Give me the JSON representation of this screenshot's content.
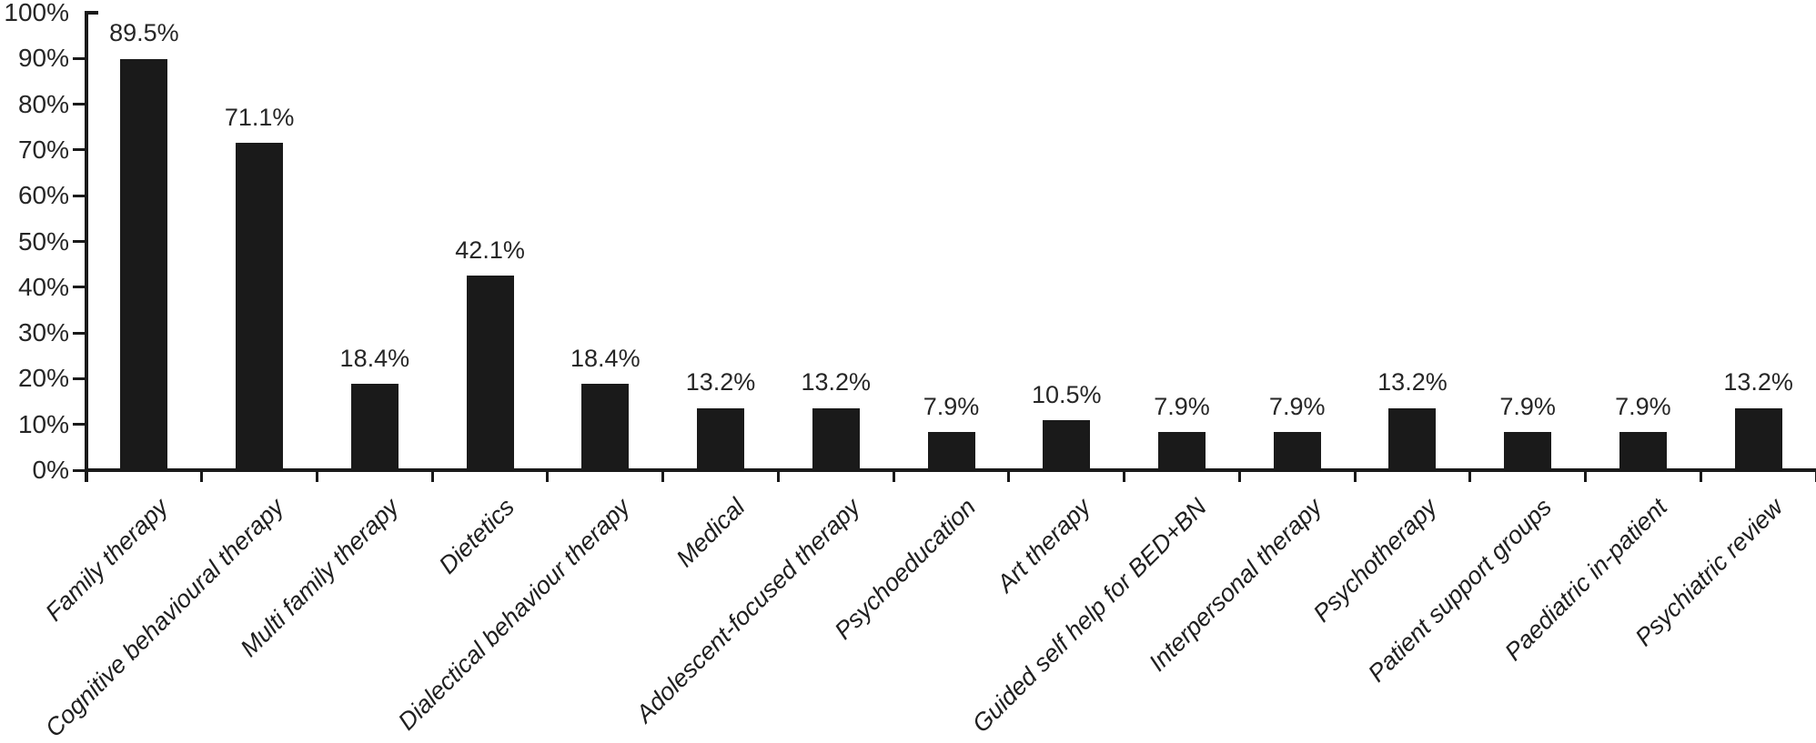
{
  "chart_data": {
    "type": "bar",
    "title": "",
    "xlabel": "",
    "ylabel": "",
    "categories": [
      "Family therapy",
      "Cognitive behavioural therapy",
      "Multi family therapy",
      "Dietetics",
      "Dialectical behaviour therapy",
      "Medical",
      "Adolescent-focused therapy",
      "Psychoeducation",
      "Art therapy",
      "Guided self help for BED+BN",
      "Interpersonal therapy",
      "Psychotherapy",
      "Patient support groups",
      "Paediatric in-patient",
      "Psychiatric review"
    ],
    "values": [
      89.5,
      71.1,
      18.4,
      42.1,
      18.4,
      13.2,
      13.2,
      7.9,
      10.5,
      7.9,
      7.9,
      13.2,
      7.9,
      7.9,
      13.2
    ],
    "value_labels": [
      "89.5%",
      "71.1%",
      "18.4%",
      "42.1%",
      "18.4%",
      "13.2%",
      "13.2%",
      "7.9%",
      "10.5%",
      "7.9%",
      "7.9%",
      "13.2%",
      "7.9%",
      "7.9%",
      "13.2%"
    ],
    "ylim": [
      0,
      100
    ],
    "yticks": [
      "0%",
      "10%",
      "20%",
      "30%",
      "40%",
      "50%",
      "60%",
      "70%",
      "80%",
      "90%",
      "100%"
    ],
    "grid": false,
    "legend": false,
    "bar_color": "#1a1a1a",
    "axis_color": "#1a1a1a",
    "text_color": "#262626"
  }
}
